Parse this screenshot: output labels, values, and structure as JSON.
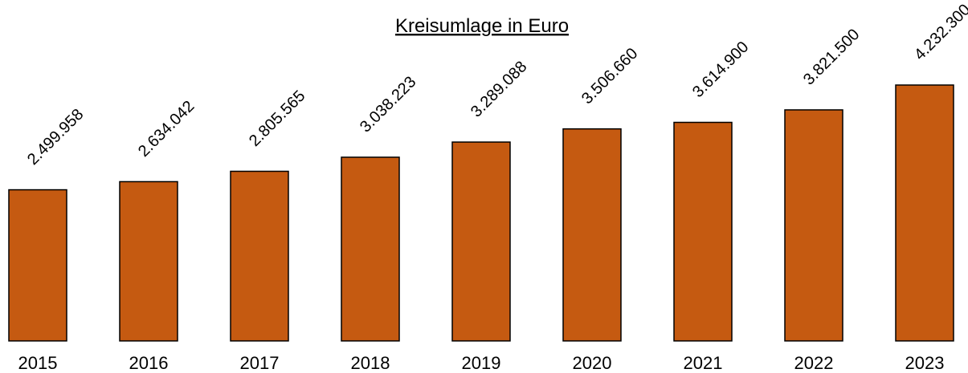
{
  "chart_data": {
    "type": "bar",
    "title": "Kreisumlage in Euro",
    "categories": [
      "2015",
      "2016",
      "2017",
      "2018",
      "2019",
      "2020",
      "2021",
      "2022",
      "2023"
    ],
    "values": [
      2499958,
      2634042,
      2805565,
      3038223,
      3289088,
      3506660,
      3614900,
      3821500,
      4232300
    ],
    "value_labels": [
      "2.499.958",
      "2.634.042",
      "2.805.565",
      "3.038.223",
      "3.289.088",
      "3.506.660",
      "3.614.900",
      "3.821.500",
      "4.232.300"
    ],
    "color": "#c55a11"
  }
}
